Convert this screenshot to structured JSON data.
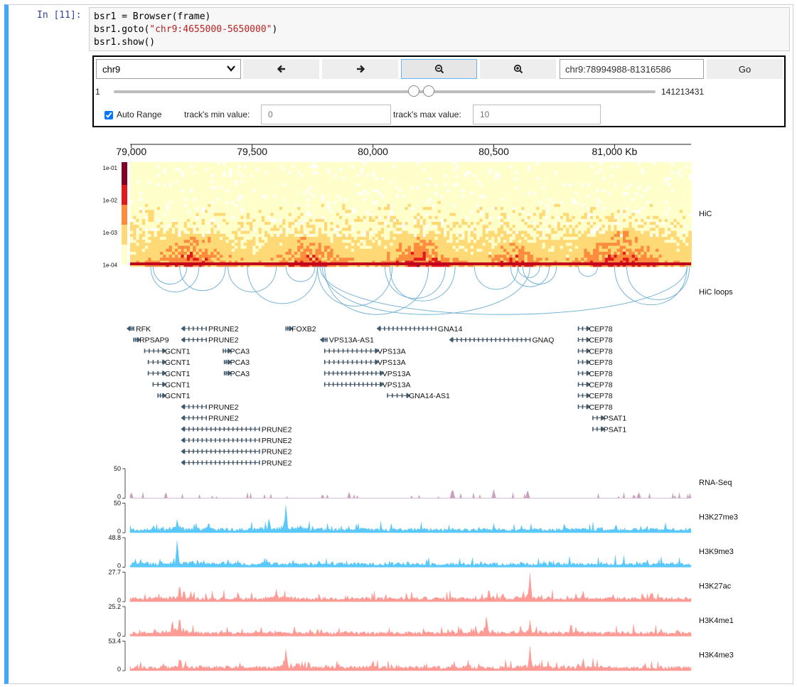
{
  "cell": {
    "prompt": "In [11]:",
    "code_lines": [
      {
        "pre": "bsr1 = Browser(frame)",
        "str": "",
        "post": ""
      },
      {
        "pre": "bsr1.goto(",
        "str": "\"chr9:4655000-5650000\"",
        "post": ")"
      },
      {
        "pre": "bsr1.show()",
        "str": "",
        "post": ""
      }
    ]
  },
  "widget": {
    "chrom": "chr9",
    "buttons": [
      {
        "name": "back-button",
        "icon": "arrow-left-icon"
      },
      {
        "name": "forward-button",
        "icon": "arrow-right-icon"
      },
      {
        "name": "zoom-out-button",
        "icon": "zoom-out-icon"
      },
      {
        "name": "zoom-in-button",
        "icon": "zoom-in-icon"
      }
    ],
    "region": "chr9:78994988-81316586",
    "go_label": "Go",
    "slider": {
      "min_label": "1",
      "max_label": "141213431",
      "min_value": 1,
      "max_value": 141213431,
      "low_value": 78994988,
      "high_value": 81316586
    },
    "auto_range_label": "Auto Range",
    "auto_range_checked": true,
    "min_label": "track's min value:",
    "min_value": "0",
    "max_label": "track's max value:",
    "max_value": "10"
  },
  "tracks": {
    "axis": {
      "domain": [
        78994988,
        81316586
      ],
      "ticks": [
        {
          "v": 79000000,
          "label": "79,000"
        },
        {
          "v": 79500000,
          "label": "79,500"
        },
        {
          "v": 80000000,
          "label": "80,000"
        },
        {
          "v": 80500000,
          "label": "80,500"
        },
        {
          "v": 81000000,
          "label": "81,000 Kb"
        }
      ]
    },
    "hic": {
      "label": "HiC",
      "colorbar_ticks": [
        "1e-01",
        "1e-02",
        "1e-03",
        "1e-04"
      ],
      "domains": [
        [
          79000000,
          79500000
        ],
        [
          79500000,
          79950000
        ],
        [
          79950000,
          80420000
        ],
        [
          80420000,
          80750000
        ],
        [
          80750000,
          81300000
        ]
      ],
      "colors": [
        "#ffffcc",
        "#fed976",
        "#fd8d3c",
        "#e31a1c",
        "#800026"
      ]
    },
    "loops": {
      "label": "HiC loops",
      "arcs": [
        [
          79080000,
          79280000
        ],
        [
          79090000,
          79230000
        ],
        [
          79200000,
          79390000
        ],
        [
          79400000,
          79600000
        ],
        [
          79480000,
          79770000
        ],
        [
          79640000,
          79760000
        ],
        [
          79770000,
          80080000
        ],
        [
          79800000,
          80230000
        ],
        [
          79790000,
          80650000
        ],
        [
          80050000,
          80300000
        ],
        [
          80070000,
          80340000
        ],
        [
          80420000,
          80600000
        ],
        [
          80570000,
          80730000
        ],
        [
          80600000,
          80690000
        ],
        [
          80620000,
          80760000
        ],
        [
          80850000,
          80930000
        ],
        [
          81050000,
          81310000
        ],
        [
          81000000,
          81300000
        ],
        [
          79780000,
          81300000
        ]
      ]
    },
    "genes": [
      {
        "name": "RFK",
        "start": 78995000,
        "end": 79000000,
        "row": 0,
        "strand": "-"
      },
      {
        "name": "PRUNE2",
        "start": 79220000,
        "end": 79310000,
        "row": 0,
        "strand": "-"
      },
      {
        "name": "FOXB2",
        "start": 79640000,
        "end": 79650000,
        "row": 0,
        "strand": "+"
      },
      {
        "name": "GNA14",
        "start": 80030000,
        "end": 80260000,
        "row": 0,
        "strand": "-"
      },
      {
        "name": "CEP78",
        "start": 80850000,
        "end": 80885000,
        "row": 0,
        "strand": "+"
      },
      {
        "name": "RPSAP9",
        "start": 79010000,
        "end": 79015000,
        "row": 1,
        "strand": "+"
      },
      {
        "name": "PRUNE2",
        "start": 79220000,
        "end": 79310000,
        "row": 1,
        "strand": "-"
      },
      {
        "name": "VPS13A-AS1",
        "start": 79795000,
        "end": 79805000,
        "row": 1,
        "strand": "-"
      },
      {
        "name": "GNAQ",
        "start": 80330000,
        "end": 80650000,
        "row": 1,
        "strand": "-"
      },
      {
        "name": "CEP78",
        "start": 80850000,
        "end": 80885000,
        "row": 1,
        "strand": "+"
      },
      {
        "name": "GCNT1",
        "start": 79055000,
        "end": 79130000,
        "row": 2,
        "strand": "+"
      },
      {
        "name": "PCA3",
        "start": 79380000,
        "end": 79400000,
        "row": 2,
        "strand": "+"
      },
      {
        "name": "VPS13A",
        "start": 79800000,
        "end": 80010000,
        "row": 2,
        "strand": "+"
      },
      {
        "name": "CEP78",
        "start": 80850000,
        "end": 80885000,
        "row": 2,
        "strand": "+"
      },
      {
        "name": "GCNT1",
        "start": 79070000,
        "end": 79130000,
        "row": 3,
        "strand": "+"
      },
      {
        "name": "PCA3",
        "start": 79385000,
        "end": 79400000,
        "row": 3,
        "strand": "+"
      },
      {
        "name": "VPS13A",
        "start": 79800000,
        "end": 80010000,
        "row": 3,
        "strand": "+"
      },
      {
        "name": "CEP78",
        "start": 80850000,
        "end": 80885000,
        "row": 3,
        "strand": "+"
      },
      {
        "name": "GCNT1",
        "start": 79070000,
        "end": 79130000,
        "row": 4,
        "strand": "+"
      },
      {
        "name": "PCA3",
        "start": 79385000,
        "end": 79400000,
        "row": 4,
        "strand": "+"
      },
      {
        "name": "VPS13A",
        "start": 79800000,
        "end": 80030000,
        "row": 4,
        "strand": "+"
      },
      {
        "name": "CEP78",
        "start": 80850000,
        "end": 80885000,
        "row": 4,
        "strand": "+"
      },
      {
        "name": "GCNT1",
        "start": 79090000,
        "end": 79130000,
        "row": 5,
        "strand": "+"
      },
      {
        "name": "VPS13A",
        "start": 79800000,
        "end": 80030000,
        "row": 5,
        "strand": "+"
      },
      {
        "name": "CEP78",
        "start": 80850000,
        "end": 80885000,
        "row": 5,
        "strand": "+"
      },
      {
        "name": "GCNT1",
        "start": 79110000,
        "end": 79130000,
        "row": 6,
        "strand": "+"
      },
      {
        "name": "GNA14-AS1",
        "start": 80060000,
        "end": 80140000,
        "row": 6,
        "strand": "+"
      },
      {
        "name": "CEP78",
        "start": 80850000,
        "end": 80885000,
        "row": 6,
        "strand": "+"
      },
      {
        "name": "PRUNE2",
        "start": 79220000,
        "end": 79310000,
        "row": 7,
        "strand": "-"
      },
      {
        "name": "CEP78",
        "start": 80850000,
        "end": 80885000,
        "row": 7,
        "strand": "+"
      },
      {
        "name": "PRUNE2",
        "start": 79220000,
        "end": 79310000,
        "row": 8,
        "strand": "-"
      },
      {
        "name": "PSAT1",
        "start": 80910000,
        "end": 80945000,
        "row": 8,
        "strand": "+"
      },
      {
        "name": "PRUNE2",
        "start": 79220000,
        "end": 79530000,
        "row": 9,
        "strand": "-"
      },
      {
        "name": "PSAT1",
        "start": 80910000,
        "end": 80945000,
        "row": 9,
        "strand": "+"
      },
      {
        "name": "PRUNE2",
        "start": 79220000,
        "end": 79530000,
        "row": 10,
        "strand": "-"
      },
      {
        "name": "PRUNE2",
        "start": 79220000,
        "end": 79530000,
        "row": 11,
        "strand": "-"
      },
      {
        "name": "PRUNE2",
        "start": 79220000,
        "end": 79530000,
        "row": 12,
        "strand": "-"
      }
    ],
    "signals": [
      {
        "label": "RNA-Seq",
        "max": "50",
        "min": "0",
        "color": "#c9a0c0",
        "sparse": true,
        "peaks": [
          [
            80330000,
            0.35
          ],
          [
            80500000,
            0.3
          ],
          [
            80640000,
            0.3
          ],
          [
            79000000,
            0.2
          ],
          [
            81100000,
            0.2
          ]
        ]
      },
      {
        "label": "H3K27me3",
        "max": "50",
        "min": "0",
        "color": "#5ac8fa",
        "sparse": false,
        "peaks": [
          [
            79640000,
            1.0
          ],
          [
            79570000,
            0.55
          ],
          [
            79190000,
            0.5
          ],
          [
            79320000,
            0.4
          ],
          [
            79700000,
            0.3
          ]
        ]
      },
      {
        "label": "H3K9me3",
        "max": "48.8",
        "min": "0",
        "color": "#5ac8fa",
        "sparse": false,
        "peaks": [
          [
            79190000,
            1.0
          ],
          [
            79400000,
            0.3
          ],
          [
            79560000,
            0.3
          ],
          [
            79300000,
            0.25
          ]
        ]
      },
      {
        "label": "H3K27ac",
        "max": "27.7",
        "min": "0",
        "color": "#ff9a94",
        "sparse": false,
        "peaks": [
          [
            80650000,
            1.0
          ],
          [
            79200000,
            0.65
          ],
          [
            80480000,
            0.5
          ],
          [
            79600000,
            0.45
          ],
          [
            80870000,
            0.4
          ]
        ]
      },
      {
        "label": "H3K4me1",
        "max": "25.2",
        "min": "0",
        "color": "#ff9a94",
        "sparse": false,
        "peaks": [
          [
            80470000,
            0.75
          ],
          [
            79200000,
            0.7
          ],
          [
            79170000,
            0.6
          ],
          [
            80650000,
            0.55
          ],
          [
            80820000,
            0.5
          ]
        ]
      },
      {
        "label": "H3K4me3",
        "max": "53.4",
        "min": "0",
        "color": "#ff9a94",
        "sparse": false,
        "peaks": [
          [
            79640000,
            0.8
          ],
          [
            80650000,
            0.85
          ],
          [
            79200000,
            0.5
          ],
          [
            80870000,
            0.45
          ],
          [
            80000000,
            0.4
          ]
        ]
      }
    ]
  }
}
